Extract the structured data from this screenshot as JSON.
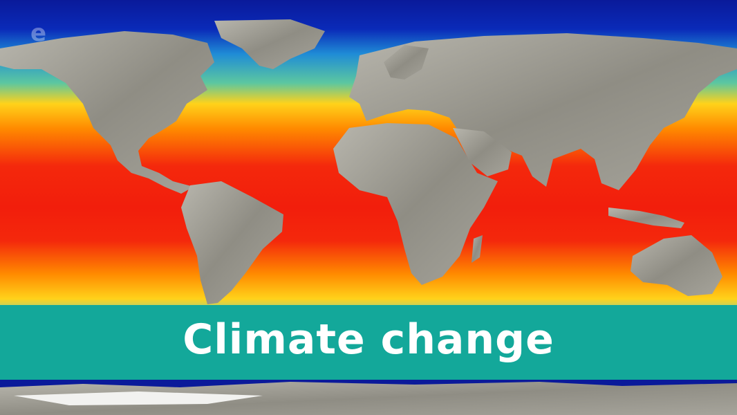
{
  "banner": {
    "title": "Climate change"
  },
  "logo": {
    "text": "e"
  },
  "colors": {
    "ocean_cold": "#0a1a9a",
    "ocean_cool": "#1f8cd6",
    "ocean_mild": "#ffd21a",
    "ocean_warm": "#ff8a00",
    "ocean_hot": "#f21e0c",
    "land": "#9c9a90",
    "banner": "#13a89a"
  },
  "map": {
    "kind": "sea-surface-temperature world map"
  }
}
